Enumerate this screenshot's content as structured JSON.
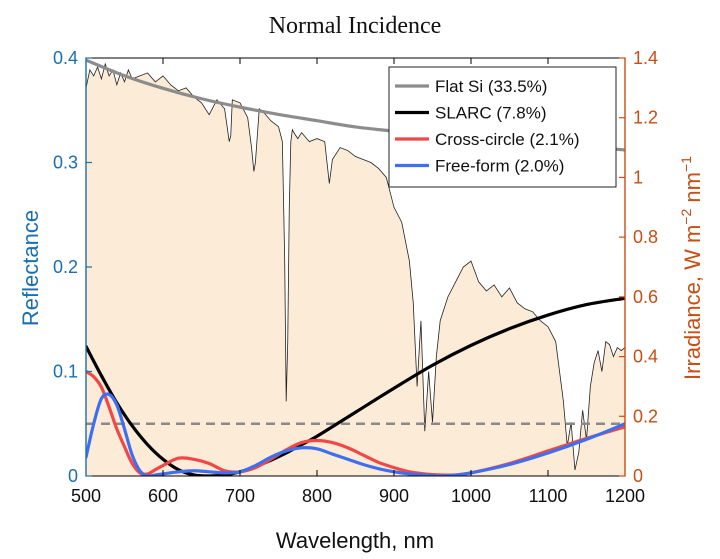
{
  "colors": {
    "left_axis": "#1a6fb0",
    "right_axis": "#c84e12",
    "irradiance_fill": "#fcebd6",
    "irradiance_line": "#222222",
    "reference_dash": "#8a8a8a"
  },
  "chart_data": {
    "type": "line",
    "title": "Normal Incidence",
    "xlabel": "Wavelength, nm",
    "ylabel": "Reflectance",
    "ylabel_right_prefix": "Irradiance, W m",
    "ylabel_right_sup1": "−2",
    "ylabel_right_mid": " nm",
    "ylabel_right_sup2": "−1",
    "xlim": [
      500,
      1200
    ],
    "ylim": [
      0,
      0.4
    ],
    "ylim_right": [
      0,
      1.4
    ],
    "xticks": [
      "500",
      "600",
      "700",
      "800",
      "900",
      "1000",
      "1100",
      "1200"
    ],
    "xtick_values": [
      500,
      600,
      700,
      800,
      900,
      1000,
      1100,
      1200
    ],
    "yticks_left": [
      "0",
      "0.1",
      "0.2",
      "0.3",
      "0.4"
    ],
    "ytick_left_values": [
      0,
      0.1,
      0.2,
      0.3,
      0.4
    ],
    "yticks_right": [
      "0",
      "0.2",
      "0.4",
      "0.6",
      "0.8",
      "1",
      "1.2",
      "1.4"
    ],
    "ytick_right_values": [
      0,
      0.2,
      0.4,
      0.6,
      0.8,
      1.0,
      1.2,
      1.4
    ],
    "legend_position": "top-right",
    "series": [
      {
        "name": "Flat Si (33.5%)",
        "color": "#8c8c8c",
        "axis": "left",
        "x": [
          500,
          550,
          600,
          650,
          700,
          750,
          800,
          850,
          900,
          950,
          1000,
          1050,
          1100,
          1150,
          1200
        ],
        "y": [
          0.398,
          0.383,
          0.371,
          0.361,
          0.353,
          0.346,
          0.34,
          0.334,
          0.33,
          0.326,
          0.323,
          0.32,
          0.317,
          0.315,
          0.312
        ]
      },
      {
        "name": "SLARC (7.8%)",
        "color": "#000000",
        "axis": "left",
        "x": [
          500,
          520,
          540,
          560,
          580,
          600,
          620,
          640,
          660,
          680,
          700,
          720,
          740,
          760,
          780,
          800,
          850,
          900,
          950,
          1000,
          1050,
          1100,
          1150,
          1200
        ],
        "y": [
          0.124,
          0.096,
          0.07,
          0.048,
          0.03,
          0.016,
          0.006,
          0.001,
          0.0,
          0.001,
          0.004,
          0.009,
          0.015,
          0.022,
          0.03,
          0.038,
          0.061,
          0.084,
          0.106,
          0.125,
          0.141,
          0.154,
          0.164,
          0.17
        ]
      },
      {
        "name": "Cross-circle (2.1%)",
        "color": "#f04848",
        "axis": "left",
        "x": [
          500,
          510,
          520,
          530,
          540,
          550,
          560,
          570,
          580,
          590,
          600,
          620,
          640,
          660,
          680,
          700,
          720,
          740,
          760,
          780,
          800,
          820,
          840,
          860,
          880,
          900,
          920,
          940,
          960,
          980,
          1000,
          1050,
          1100,
          1150,
          1200
        ],
        "y": [
          0.1,
          0.095,
          0.085,
          0.066,
          0.045,
          0.028,
          0.012,
          0.003,
          0.002,
          0.006,
          0.01,
          0.017,
          0.016,
          0.012,
          0.005,
          0.004,
          0.008,
          0.016,
          0.025,
          0.032,
          0.034,
          0.032,
          0.027,
          0.02,
          0.013,
          0.008,
          0.004,
          0.002,
          0.001,
          0.001,
          0.003,
          0.012,
          0.024,
          0.036,
          0.047
        ]
      },
      {
        "name": "Free-form (2.0%)",
        "color": "#3e6ff0",
        "axis": "left",
        "x": [
          500,
          510,
          520,
          530,
          540,
          550,
          560,
          570,
          580,
          590,
          600,
          620,
          640,
          660,
          680,
          700,
          720,
          740,
          760,
          780,
          800,
          820,
          840,
          860,
          880,
          900,
          920,
          940,
          960,
          980,
          1000,
          1050,
          1100,
          1150,
          1200
        ],
        "y": [
          0.018,
          0.05,
          0.074,
          0.078,
          0.068,
          0.045,
          0.02,
          0.005,
          0.0,
          0.001,
          0.002,
          0.004,
          0.005,
          0.004,
          0.003,
          0.004,
          0.01,
          0.018,
          0.024,
          0.027,
          0.026,
          0.021,
          0.016,
          0.011,
          0.007,
          0.004,
          0.002,
          0.001,
          0.0,
          0.001,
          0.003,
          0.011,
          0.022,
          0.035,
          0.05
        ]
      },
      {
        "name": "",
        "kind": "reference-dashed",
        "color": "#8a8a8a",
        "axis": "left",
        "x": [
          500,
          1200
        ],
        "y": [
          0.05,
          0.05
        ]
      },
      {
        "name": "",
        "kind": "irradiance-filled",
        "color": "#222222",
        "axis": "right",
        "x": [
          500,
          505,
          510,
          515,
          520,
          525,
          530,
          535,
          540,
          545,
          550,
          555,
          560,
          570,
          580,
          590,
          600,
          610,
          620,
          630,
          640,
          650,
          660,
          670,
          680,
          686,
          688,
          690,
          700,
          710,
          715,
          718,
          720,
          725,
          730,
          740,
          750,
          755,
          758,
          760,
          762,
          764,
          766,
          768,
          770,
          775,
          780,
          790,
          800,
          810,
          816,
          820,
          830,
          840,
          850,
          860,
          870,
          880,
          890,
          900,
          910,
          920,
          925,
          930,
          935,
          940,
          945,
          950,
          955,
          960,
          970,
          980,
          990,
          1000,
          1010,
          1020,
          1030,
          1040,
          1050,
          1060,
          1070,
          1080,
          1090,
          1100,
          1110,
          1115,
          1120,
          1125,
          1130,
          1135,
          1140,
          1145,
          1150,
          1155,
          1160,
          1165,
          1170,
          1175,
          1180,
          1185,
          1190,
          1195,
          1200
        ],
        "y": [
          1.3,
          1.36,
          1.34,
          1.37,
          1.33,
          1.38,
          1.34,
          1.36,
          1.31,
          1.35,
          1.32,
          1.36,
          1.33,
          1.34,
          1.35,
          1.32,
          1.34,
          1.31,
          1.29,
          1.3,
          1.27,
          1.25,
          1.21,
          1.26,
          1.23,
          1.12,
          1.14,
          1.26,
          1.25,
          1.2,
          1.1,
          1.02,
          1.05,
          1.23,
          1.22,
          1.19,
          1.17,
          1.12,
          0.73,
          0.25,
          0.45,
          0.9,
          1.12,
          1.16,
          1.15,
          1.13,
          1.15,
          1.12,
          1.13,
          1.12,
          0.98,
          1.06,
          1.1,
          1.09,
          1.07,
          1.06,
          1.05,
          1.03,
          1.0,
          0.9,
          0.85,
          0.72,
          0.58,
          0.3,
          0.52,
          0.15,
          0.35,
          0.18,
          0.4,
          0.52,
          0.6,
          0.65,
          0.7,
          0.72,
          0.65,
          0.62,
          0.64,
          0.6,
          0.63,
          0.58,
          0.56,
          0.55,
          0.52,
          0.5,
          0.45,
          0.35,
          0.25,
          0.1,
          0.18,
          0.02,
          0.08,
          0.22,
          0.12,
          0.3,
          0.38,
          0.42,
          0.35,
          0.45,
          0.44,
          0.4,
          0.43,
          0.42,
          0.43
        ]
      }
    ]
  }
}
